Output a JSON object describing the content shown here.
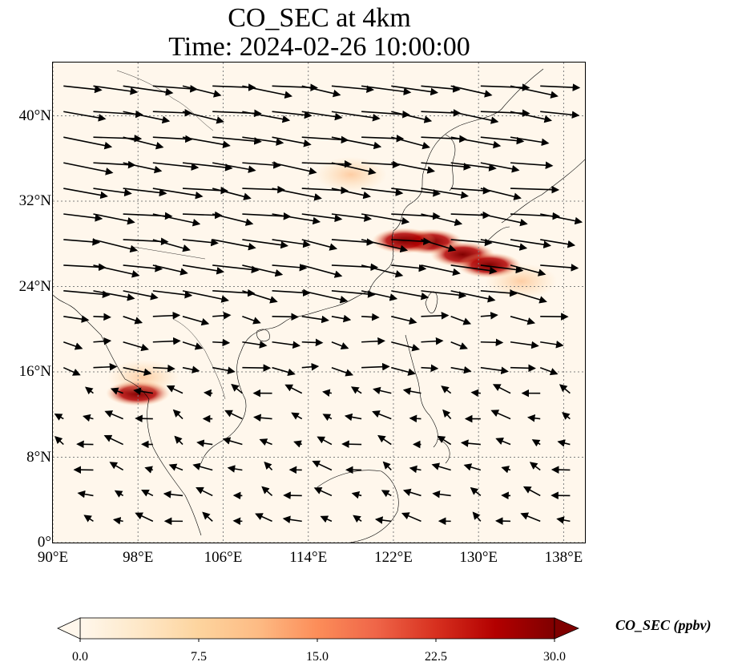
{
  "title": {
    "line1": "CO_SEC at 4km",
    "line2": "Time: 2024-02-26 10:00:00"
  },
  "map": {
    "extent": {
      "lon_min": 90,
      "lon_max": 140,
      "lat_min": 0,
      "lat_max": 45
    },
    "gridlines": "dotted",
    "background_color": "#fff7ec"
  },
  "axes": {
    "lat_ticks": [
      {
        "value": 0,
        "label": "0°"
      },
      {
        "value": 8,
        "label": "8°N"
      },
      {
        "value": 16,
        "label": "16°N"
      },
      {
        "value": 24,
        "label": "24°N"
      },
      {
        "value": 32,
        "label": "32°N"
      },
      {
        "value": 40,
        "label": "40°N"
      }
    ],
    "lon_ticks": [
      {
        "value": 90,
        "label": "90°E"
      },
      {
        "value": 98,
        "label": "98°E"
      },
      {
        "value": 106,
        "label": "106°E"
      },
      {
        "value": 114,
        "label": "114°E"
      },
      {
        "value": 122,
        "label": "122°E"
      },
      {
        "value": 130,
        "label": "130°E"
      },
      {
        "value": 138,
        "label": "138°E"
      }
    ]
  },
  "colorbar": {
    "label": "CO_SEC (ppbv)",
    "colormap": "OrRd",
    "min": 0.0,
    "max": 30.0,
    "extend": "both",
    "tick_values": [
      0.0,
      7.5,
      15.0,
      22.5,
      30.0
    ],
    "tick_labels": [
      "0.0",
      "7.5",
      "15.0",
      "22.5",
      "30.0"
    ],
    "stops": [
      "#fff7ec",
      "#fee8c8",
      "#fdd49e",
      "#fdbb84",
      "#fc8d59",
      "#ef6548",
      "#d7301f",
      "#b30000",
      "#7f0000"
    ]
  },
  "plumes": [
    {
      "lon": 125.5,
      "lat": 28.2,
      "value": 30.0
    },
    {
      "lon": 123.0,
      "lat": 28.3,
      "value": 29.0
    },
    {
      "lon": 128.5,
      "lat": 27.0,
      "value": 28.0
    },
    {
      "lon": 131.0,
      "lat": 26.0,
      "value": 18.0
    },
    {
      "lon": 134.0,
      "lat": 24.5,
      "value": 8.0
    },
    {
      "lon": 118.0,
      "lat": 34.5,
      "value": 4.0
    },
    {
      "lon": 98.0,
      "lat": 14.0,
      "value": 22.0
    },
    {
      "lon": 98.5,
      "lat": 15.5,
      "value": 6.0
    }
  ],
  "wind_field": {
    "description_lat_bands": [
      {
        "lat_min": 30,
        "lat_max": 45,
        "u": 6.0,
        "v": -0.8
      },
      {
        "lat_min": 22,
        "lat_max": 30,
        "u": 5.5,
        "v": -0.9
      },
      {
        "lat_min": 16,
        "lat_max": 22,
        "u": 3.0,
        "v": -0.4
      },
      {
        "lat_min": 0,
        "lat_max": 16,
        "u": -1.8,
        "v": 0.6
      }
    ]
  }
}
